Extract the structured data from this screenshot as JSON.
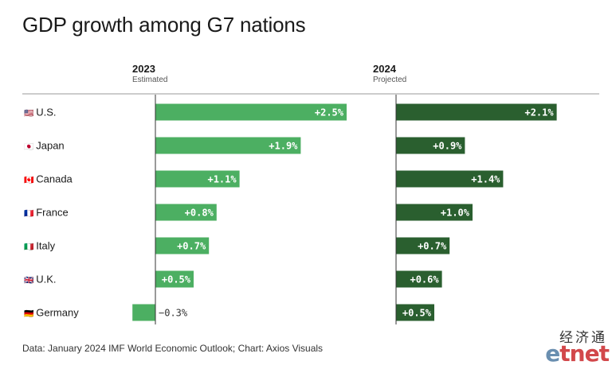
{
  "title": "GDP growth among G7 nations",
  "source": "Data: January 2024 IMF World Economic Outlook; Chart: Axios Visuals",
  "logo": {
    "chinese": "经济通",
    "latin_first": "e",
    "latin_rest": "tnet"
  },
  "colors": {
    "light_green": "#4caf62",
    "dark_green": "#2a5f2f",
    "axis": "#333333",
    "rule": "#999999"
  },
  "chart_data": {
    "type": "bar",
    "title": "GDP growth among G7 nations",
    "categories": [
      {
        "flag": "🇺🇸",
        "name": "U.S."
      },
      {
        "flag": "🇯🇵",
        "name": "Japan"
      },
      {
        "flag": "🇨🇦",
        "name": "Canada"
      },
      {
        "flag": "🇫🇷",
        "name": "France"
      },
      {
        "flag": "🇮🇹",
        "name": "Italy"
      },
      {
        "flag": "🇬🇧",
        "name": "U.K."
      },
      {
        "flag": "🇩🇪",
        "name": "Germany"
      }
    ],
    "series": [
      {
        "name": "2023",
        "subtitle": "Estimated",
        "values": [
          2.5,
          1.9,
          1.1,
          0.8,
          0.7,
          0.5,
          -0.3
        ],
        "labels": [
          "+2.5%",
          "+1.9%",
          "+1.1%",
          "+0.8%",
          "+0.7%",
          "+0.5%",
          "−0.3%"
        ]
      },
      {
        "name": "2024",
        "subtitle": "Projected",
        "values": [
          2.1,
          0.9,
          1.4,
          1.0,
          0.7,
          0.6,
          0.5
        ],
        "labels": [
          "+2.1%",
          "+0.9%",
          "+1.4%",
          "+1.0%",
          "+0.7%",
          "+0.6%",
          "+0.5%"
        ]
      }
    ],
    "unit": "%",
    "grid": false,
    "legend": "none"
  }
}
